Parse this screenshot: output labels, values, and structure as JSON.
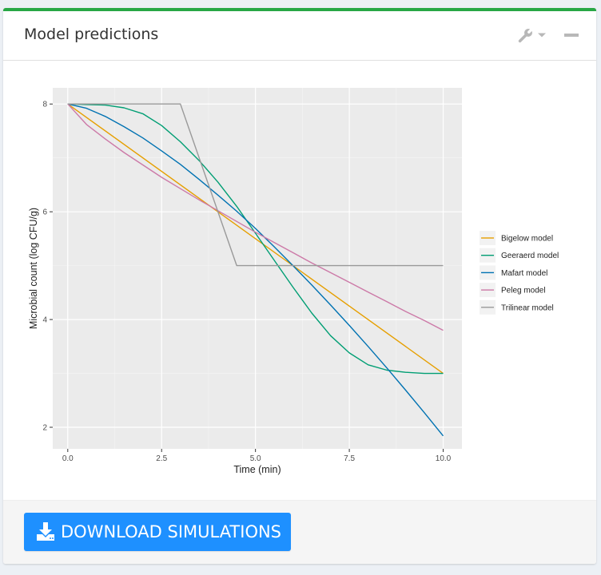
{
  "header": {
    "title": "Model predictions"
  },
  "footer": {
    "download_label": "DOWNLOAD SIMULATIONS"
  },
  "colors": {
    "accent": "#28a745",
    "button": "#1e90ff"
  },
  "icons": {
    "wrench": "wrench-icon",
    "caret": "caret-down-icon",
    "minimize": "minus-icon",
    "download": "download-icon"
  },
  "chart_data": {
    "type": "line",
    "xlabel": "Time (min)",
    "ylabel": "Microbial count (log CFU/g)",
    "xlim": [
      -0.4,
      10.5
    ],
    "ylim": [
      1.6,
      8.3
    ],
    "xticks": [
      0,
      2.5,
      5,
      7.5,
      10
    ],
    "xtick_labels": [
      "0.0",
      "2.5",
      "5.0",
      "7.5",
      "10.0"
    ],
    "yticks": [
      2,
      4,
      6,
      8
    ],
    "ytick_labels": [
      "2",
      "4",
      "6",
      "8"
    ],
    "grid": true,
    "legend_position": "right",
    "series": [
      {
        "name": "Bigelow model",
        "color": "#E69F00",
        "x": [
          0,
          10
        ],
        "y": [
          8,
          3
        ]
      },
      {
        "name": "Geeraerd model",
        "color": "#009E73",
        "x": [
          0,
          0.5,
          1,
          1.5,
          2,
          2.5,
          3,
          3.5,
          4,
          4.5,
          5,
          5.5,
          6,
          6.5,
          7,
          7.5,
          8,
          8.5,
          9,
          9.5,
          10
        ],
        "y": [
          8.0,
          7.99,
          7.98,
          7.93,
          7.82,
          7.6,
          7.3,
          6.95,
          6.55,
          6.1,
          5.6,
          5.1,
          4.6,
          4.12,
          3.7,
          3.38,
          3.16,
          3.06,
          3.02,
          3.0,
          3.0
        ]
      },
      {
        "name": "Mafart model",
        "color": "#0072B2",
        "x": [
          0,
          0.5,
          1,
          1.5,
          2,
          2.5,
          3,
          3.5,
          4,
          4.5,
          5,
          5.5,
          6,
          6.5,
          7,
          7.5,
          8,
          8.5,
          9,
          9.5,
          10
        ],
        "y": [
          8.0,
          7.92,
          7.77,
          7.58,
          7.37,
          7.13,
          6.88,
          6.6,
          6.31,
          6.01,
          5.69,
          5.35,
          5.0,
          4.64,
          4.27,
          3.89,
          3.5,
          3.1,
          2.69,
          2.27,
          1.84
        ]
      },
      {
        "name": "Peleg model",
        "color": "#CC79A7",
        "x": [
          0,
          0.5,
          1,
          1.5,
          2,
          2.5,
          3,
          3.5,
          4,
          4.5,
          5,
          5.5,
          6,
          6.5,
          7,
          7.5,
          8,
          8.5,
          9,
          9.5,
          10
        ],
        "y": [
          8.0,
          7.62,
          7.35,
          7.1,
          6.87,
          6.64,
          6.43,
          6.22,
          6.02,
          5.82,
          5.62,
          5.43,
          5.24,
          5.05,
          4.87,
          4.69,
          4.51,
          4.33,
          4.15,
          3.98,
          3.8
        ]
      },
      {
        "name": "Trilinear model",
        "color": "#999999",
        "x": [
          0,
          3,
          4.5,
          10
        ],
        "y": [
          8,
          8,
          5,
          5
        ]
      }
    ]
  }
}
